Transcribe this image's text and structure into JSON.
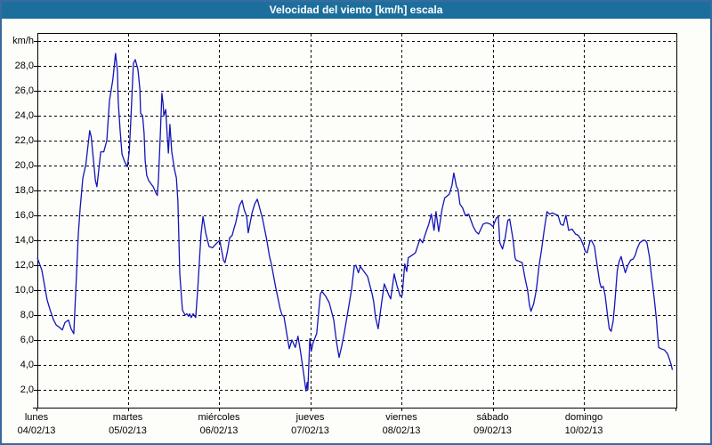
{
  "window": {
    "title": "Velocidad del viento [km/h] escala"
  },
  "colors": {
    "titlebar_bg": "#1c6f9c",
    "titlebar_text": "#ffffff",
    "window_border": "#376b9e",
    "background": "#fdfefa",
    "line": "#1414b8",
    "grid": "#000000",
    "text": "#000000"
  },
  "y_axis": {
    "unit_label": "km/h",
    "tick_labels": [
      "28,0",
      "26,0",
      "24,0",
      "22,0",
      "20,0",
      "18,0",
      "16,0",
      "14,0",
      "12,0",
      "10,0",
      "8,0",
      "6,0",
      "4,0",
      "2,0"
    ],
    "tick_values": [
      28,
      26,
      24,
      22,
      20,
      18,
      16,
      14,
      12,
      10,
      8,
      6,
      4,
      2
    ]
  },
  "x_axis": {
    "days": [
      {
        "name": "lunes",
        "date": "04/02/13"
      },
      {
        "name": "martes",
        "date": "05/02/13"
      },
      {
        "name": "miércoles",
        "date": "06/02/13"
      },
      {
        "name": "jueves",
        "date": "07/02/13"
      },
      {
        "name": "viernes",
        "date": "08/02/13"
      },
      {
        "name": "sábado",
        "date": "09/02/13"
      },
      {
        "name": "domingo",
        "date": "10/02/13"
      }
    ]
  },
  "chart_data": {
    "type": "line",
    "title": "Velocidad del viento [km/h] escala",
    "ylabel": "km/h",
    "ylim": [
      0.6,
      30.6
    ],
    "grid": true,
    "x_unit": "hours_from_monday_2013-02-04_00:00",
    "x_range_hours": [
      0,
      169
    ],
    "series": [
      {
        "name": "Velocidad del viento",
        "points": [
          [
            0.2,
            12.6
          ],
          [
            0.7,
            12.2
          ],
          [
            1.4,
            11.6
          ],
          [
            2.1,
            10.4
          ],
          [
            2.8,
            9.2
          ],
          [
            3.7,
            8.3
          ],
          [
            4.5,
            7.6
          ],
          [
            5.2,
            7.2
          ],
          [
            6.1,
            7.0
          ],
          [
            6.8,
            6.8
          ],
          [
            7.5,
            7.4
          ],
          [
            8.4,
            7.6
          ],
          [
            9.1,
            6.9
          ],
          [
            9.8,
            6.5
          ],
          [
            10.5,
            11.0
          ],
          [
            11.0,
            14.5
          ],
          [
            11.5,
            16.6
          ],
          [
            12.2,
            19.0
          ],
          [
            13.0,
            20.1
          ],
          [
            14.0,
            22.8
          ],
          [
            14.4,
            22.3
          ],
          [
            15.5,
            18.8
          ],
          [
            15.9,
            18.3
          ],
          [
            16.9,
            21.1
          ],
          [
            17.7,
            21.1
          ],
          [
            18.5,
            22.0
          ],
          [
            19.2,
            25.2
          ],
          [
            20.1,
            26.9
          ],
          [
            20.8,
            29.0
          ],
          [
            21.3,
            27.6
          ],
          [
            21.5,
            25.2
          ],
          [
            22.0,
            22.8
          ],
          [
            22.5,
            20.9
          ],
          [
            23.2,
            20.3
          ],
          [
            23.9,
            19.9
          ],
          [
            24.4,
            21.1
          ],
          [
            24.8,
            23.5
          ],
          [
            25.5,
            28.2
          ],
          [
            26.0,
            28.5
          ],
          [
            26.7,
            27.7
          ],
          [
            27.2,
            26.1
          ],
          [
            27.4,
            24.2
          ],
          [
            27.9,
            24.0
          ],
          [
            28.3,
            22.6
          ],
          [
            28.6,
            20.4
          ],
          [
            29.0,
            19.2
          ],
          [
            29.5,
            18.8
          ],
          [
            30.2,
            18.5
          ],
          [
            30.7,
            18.3
          ],
          [
            31.4,
            17.8
          ],
          [
            31.8,
            17.6
          ],
          [
            32.1,
            19.0
          ],
          [
            32.6,
            22.6
          ],
          [
            33.0,
            25.8
          ],
          [
            33.3,
            25.0
          ],
          [
            33.5,
            24.0
          ],
          [
            34.0,
            24.5
          ],
          [
            34.4,
            22.4
          ],
          [
            34.7,
            21.0
          ],
          [
            35.1,
            23.3
          ],
          [
            35.6,
            21.1
          ],
          [
            36.3,
            19.7
          ],
          [
            36.8,
            19.0
          ],
          [
            37.2,
            17.1
          ],
          [
            37.7,
            11.3
          ],
          [
            38.4,
            8.4
          ],
          [
            39.1,
            8.0
          ],
          [
            39.6,
            8.1
          ],
          [
            40.0,
            7.9
          ],
          [
            40.3,
            8.1
          ],
          [
            40.7,
            7.8
          ],
          [
            41.2,
            8.1
          ],
          [
            41.9,
            7.8
          ],
          [
            42.4,
            10.0
          ],
          [
            42.9,
            12.5
          ],
          [
            43.3,
            14.5
          ],
          [
            43.8,
            15.9
          ],
          [
            44.5,
            14.6
          ],
          [
            45.4,
            13.5
          ],
          [
            46.3,
            13.4
          ],
          [
            47.2,
            13.7
          ],
          [
            48.2,
            14.0
          ],
          [
            49.2,
            12.4
          ],
          [
            49.6,
            12.2
          ],
          [
            50.3,
            13.2
          ],
          [
            50.8,
            14.2
          ],
          [
            51.5,
            14.4
          ],
          [
            52.0,
            15.0
          ],
          [
            52.4,
            15.4
          ],
          [
            53.4,
            16.8
          ],
          [
            54.1,
            17.2
          ],
          [
            54.6,
            16.5
          ],
          [
            55.3,
            15.9
          ],
          [
            55.7,
            14.6
          ],
          [
            56.7,
            16.2
          ],
          [
            57.4,
            16.9
          ],
          [
            58.1,
            17.3
          ],
          [
            58.8,
            16.5
          ],
          [
            59.5,
            15.7
          ],
          [
            60.6,
            14.0
          ],
          [
            61.3,
            12.7
          ],
          [
            61.8,
            12.1
          ],
          [
            63.0,
            10.1
          ],
          [
            64.1,
            8.5
          ],
          [
            64.6,
            8.0
          ],
          [
            65.1,
            7.9
          ],
          [
            65.8,
            6.6
          ],
          [
            66.5,
            5.3
          ],
          [
            67.2,
            6.0
          ],
          [
            68.1,
            5.4
          ],
          [
            68.8,
            6.3
          ],
          [
            69.5,
            5.0
          ],
          [
            70.2,
            3.5
          ],
          [
            70.9,
            1.9
          ],
          [
            71.2,
            2.6
          ],
          [
            71.4,
            2.0
          ],
          [
            71.9,
            6.1
          ],
          [
            72.3,
            5.1
          ],
          [
            72.8,
            5.8
          ],
          [
            73.7,
            6.5
          ],
          [
            74.7,
            9.7
          ],
          [
            75.1,
            9.9
          ],
          [
            76.1,
            9.5
          ],
          [
            77.0,
            9.0
          ],
          [
            78.2,
            7.6
          ],
          [
            78.9,
            5.9
          ],
          [
            79.6,
            4.6
          ],
          [
            80.3,
            5.5
          ],
          [
            81.0,
            6.6
          ],
          [
            82.2,
            8.8
          ],
          [
            82.9,
            10.1
          ],
          [
            83.6,
            11.9
          ],
          [
            84.0,
            12.0
          ],
          [
            84.7,
            11.4
          ],
          [
            85.2,
            11.9
          ],
          [
            85.9,
            11.6
          ],
          [
            87.1,
            11.1
          ],
          [
            88.3,
            9.7
          ],
          [
            88.7,
            9.1
          ],
          [
            89.2,
            7.8
          ],
          [
            89.9,
            6.9
          ],
          [
            90.8,
            9.0
          ],
          [
            91.5,
            10.5
          ],
          [
            92.7,
            9.6
          ],
          [
            93.2,
            9.3
          ],
          [
            94.1,
            11.3
          ],
          [
            94.8,
            10.4
          ],
          [
            95.7,
            9.5
          ],
          [
            96.2,
            9.6
          ],
          [
            96.9,
            12.1
          ],
          [
            97.4,
            11.5
          ],
          [
            97.8,
            12.6
          ],
          [
            98.8,
            12.8
          ],
          [
            99.7,
            13.0
          ],
          [
            100.9,
            14.1
          ],
          [
            101.6,
            13.8
          ],
          [
            102.3,
            14.5
          ],
          [
            103.2,
            15.3
          ],
          [
            103.9,
            16.1
          ],
          [
            104.6,
            14.8
          ],
          [
            105.1,
            16.3
          ],
          [
            105.8,
            14.7
          ],
          [
            106.7,
            16.5
          ],
          [
            107.4,
            17.4
          ],
          [
            108.6,
            17.7
          ],
          [
            109.3,
            18.4
          ],
          [
            109.8,
            19.4
          ],
          [
            110.5,
            18.3
          ],
          [
            110.9,
            18.1
          ],
          [
            111.4,
            16.9
          ],
          [
            112.1,
            16.6
          ],
          [
            112.8,
            16.0
          ],
          [
            113.7,
            16.1
          ],
          [
            114.9,
            15.1
          ],
          [
            115.6,
            14.7
          ],
          [
            116.3,
            14.5
          ],
          [
            117.5,
            15.3
          ],
          [
            118.4,
            15.4
          ],
          [
            119.4,
            15.3
          ],
          [
            120.1,
            15.1
          ],
          [
            121.0,
            15.8
          ],
          [
            121.5,
            15.9
          ],
          [
            121.9,
            13.8
          ],
          [
            122.6,
            13.3
          ],
          [
            123.3,
            14.2
          ],
          [
            124.0,
            15.6
          ],
          [
            124.5,
            15.7
          ],
          [
            125.4,
            14.0
          ],
          [
            125.9,
            12.6
          ],
          [
            126.2,
            12.4
          ],
          [
            127.1,
            12.3
          ],
          [
            127.8,
            12.2
          ],
          [
            128.5,
            11.0
          ],
          [
            129.2,
            10.0
          ],
          [
            129.7,
            8.8
          ],
          [
            130.1,
            8.3
          ],
          [
            130.8,
            8.9
          ],
          [
            131.5,
            10.0
          ],
          [
            132.2,
            11.9
          ],
          [
            132.9,
            13.3
          ],
          [
            133.6,
            14.9
          ],
          [
            134.3,
            16.3
          ],
          [
            135.0,
            16.1
          ],
          [
            135.7,
            16.2
          ],
          [
            136.4,
            16.1
          ],
          [
            137.2,
            16.0
          ],
          [
            137.9,
            15.3
          ],
          [
            138.6,
            15.2
          ],
          [
            139.3,
            16.0
          ],
          [
            140.0,
            14.8
          ],
          [
            140.9,
            14.9
          ],
          [
            141.8,
            14.5
          ],
          [
            142.5,
            14.4
          ],
          [
            143.2,
            14.1
          ],
          [
            144.0,
            13.5
          ],
          [
            144.4,
            13.1
          ],
          [
            144.9,
            13.0
          ],
          [
            145.6,
            13.9
          ],
          [
            146.0,
            14.0
          ],
          [
            146.8,
            13.5
          ],
          [
            147.2,
            12.6
          ],
          [
            147.7,
            11.6
          ],
          [
            148.2,
            10.6
          ],
          [
            148.6,
            10.2
          ],
          [
            149.1,
            10.3
          ],
          [
            149.6,
            9.6
          ],
          [
            150.3,
            7.8
          ],
          [
            150.7,
            6.9
          ],
          [
            151.2,
            6.7
          ],
          [
            151.7,
            7.5
          ],
          [
            152.1,
            8.8
          ],
          [
            152.8,
            11.6
          ],
          [
            153.3,
            12.3
          ],
          [
            153.8,
            12.7
          ],
          [
            154.2,
            12.2
          ],
          [
            154.9,
            11.4
          ],
          [
            155.6,
            12.0
          ],
          [
            156.3,
            12.4
          ],
          [
            157.0,
            12.5
          ],
          [
            157.5,
            12.8
          ],
          [
            158.0,
            13.3
          ],
          [
            158.7,
            13.8
          ],
          [
            159.6,
            14.0
          ],
          [
            160.1,
            14.0
          ],
          [
            160.6,
            13.8
          ],
          [
            161.3,
            12.6
          ],
          [
            161.7,
            11.4
          ],
          [
            162.2,
            10.2
          ],
          [
            162.7,
            8.8
          ],
          [
            163.1,
            7.6
          ],
          [
            163.4,
            6.4
          ],
          [
            163.7,
            5.4
          ],
          [
            164.3,
            5.3
          ],
          [
            165.2,
            5.2
          ],
          [
            166.0,
            4.9
          ],
          [
            166.6,
            4.4
          ],
          [
            167.0,
            4.0
          ],
          [
            167.3,
            3.6
          ]
        ]
      }
    ]
  }
}
